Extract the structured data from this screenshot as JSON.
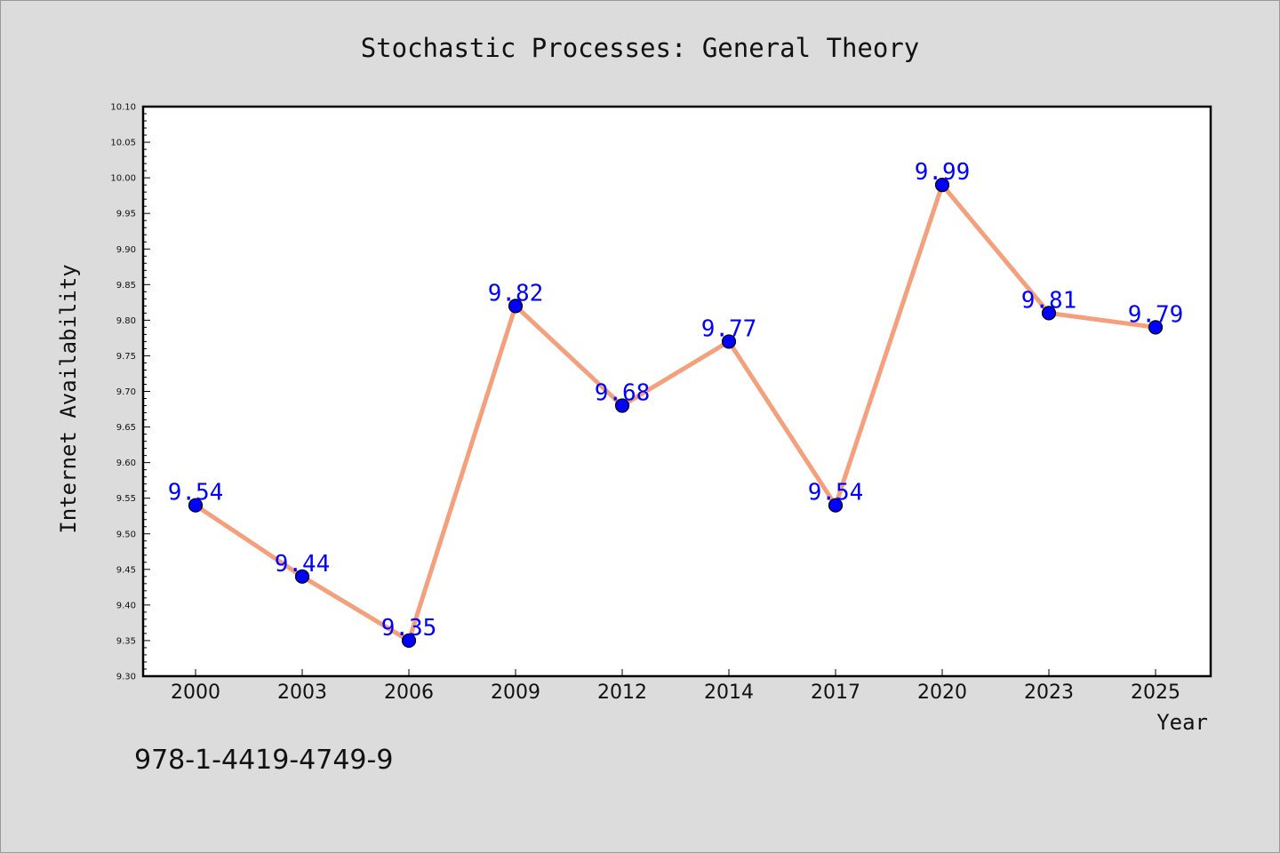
{
  "chart_data": {
    "type": "line",
    "title": "Stochastic Processes: General Theory",
    "xlabel": "Year",
    "ylabel": "Internet Availability",
    "categories": [
      "2000",
      "2003",
      "2006",
      "2009",
      "2012",
      "2014",
      "2017",
      "2020",
      "2023",
      "2025"
    ],
    "values": [
      9.54,
      9.44,
      9.35,
      9.82,
      9.68,
      9.77,
      9.54,
      9.99,
      9.81,
      9.79
    ],
    "data_labels": [
      "9.54",
      "9.44",
      "9.35",
      "9.82",
      "9.68",
      "9.77",
      "9.54",
      "9.99",
      "9.81",
      "9.79"
    ],
    "ylim": [
      9.3,
      10.1
    ],
    "yticks": [
      "9.30",
      "9.35",
      "9.40",
      "9.45",
      "9.50",
      "9.55",
      "9.60",
      "9.65",
      "9.70",
      "9.75",
      "9.80",
      "9.85",
      "9.90",
      "9.95",
      "10.00",
      "10.05",
      "10.10"
    ],
    "grid": false,
    "colors": {
      "line": "#f4a07c",
      "marker": "#0000ff",
      "label": "#0000ff"
    }
  },
  "footer": {
    "isbn": "978-1-4419-4749-9"
  }
}
